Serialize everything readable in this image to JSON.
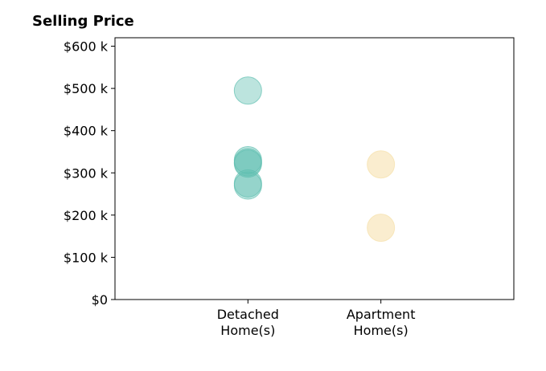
{
  "chart_data": {
    "type": "scatter",
    "title": "Selling Price",
    "xlabel": "",
    "ylabel": "",
    "categories": [
      "Detached\nHome(s)",
      "Apartment\nHome(s)"
    ],
    "x_range": [
      0,
      3
    ],
    "ylim": [
      0,
      620000
    ],
    "y_ticks": [
      0,
      100000,
      200000,
      300000,
      400000,
      500000,
      600000
    ],
    "y_tick_labels": [
      "$0",
      "$100 k",
      "$200 k",
      "$300 k",
      "$400 k",
      "$500 k",
      "$600 k"
    ],
    "grid": false,
    "series": [
      {
        "category": "Detached\nHome(s)",
        "color": "#5fbfb0",
        "values": [
          495000,
          330000,
          325000,
          322000,
          275000,
          270000
        ]
      },
      {
        "category": "Apartment\nHome(s)",
        "color": "#f5dfa8",
        "values": [
          320000,
          170000
        ]
      }
    ]
  }
}
